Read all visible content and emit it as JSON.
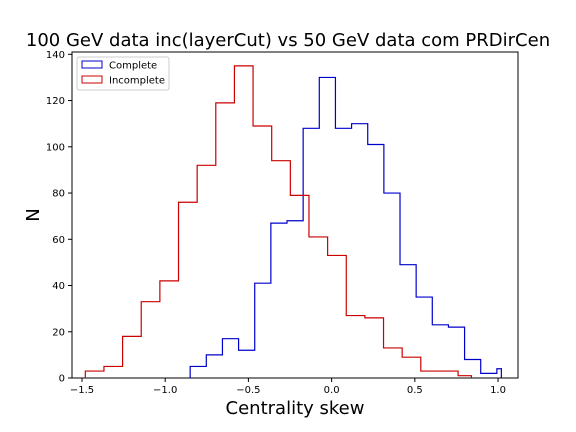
{
  "chart_data": {
    "type": "histogram",
    "title": "100 GeV data inc(layerCut) vs 50 GeV data com PRDirCen",
    "xlabel": "Centrality skew",
    "ylabel": "N",
    "xlim": [
      -1.56,
      1.12
    ],
    "ylim": [
      0,
      141
    ],
    "xticks": [
      -1.5,
      -1.0,
      -0.5,
      0.0,
      0.5,
      1.0
    ],
    "xtick_labels": [
      "−1.5",
      "−1.0",
      "−0.5",
      "0.0",
      "0.5",
      "1.0"
    ],
    "yticks": [
      0,
      20,
      40,
      60,
      80,
      100,
      120,
      140
    ],
    "ytick_labels": [
      "0",
      "20",
      "40",
      "60",
      "80",
      "100",
      "120",
      "140"
    ],
    "grid": false,
    "legend_position": "top-left",
    "series": [
      {
        "name": "Complete",
        "color": "#0000cc",
        "bin_edges": [
          -0.85,
          -0.753,
          -0.656,
          -0.559,
          -0.462,
          -0.365,
          -0.268,
          -0.171,
          -0.074,
          0.023,
          0.12,
          0.217,
          0.314,
          0.411,
          0.508,
          0.605,
          0.702,
          0.799,
          0.896,
          0.993,
          1.02
        ],
        "counts": [
          5,
          10,
          17,
          12,
          41,
          67,
          68,
          108,
          130,
          108,
          110,
          101,
          80,
          49,
          35,
          23,
          22,
          8,
          2,
          4
        ]
      },
      {
        "name": "Incomplete",
        "color": "#cc0000",
        "bin_edges": [
          -1.48,
          -1.368,
          -1.256,
          -1.144,
          -1.032,
          -0.92,
          -0.808,
          -0.696,
          -0.584,
          -0.472,
          -0.36,
          -0.248,
          -0.136,
          -0.024,
          0.088,
          0.2,
          0.312,
          0.424,
          0.536,
          0.648,
          0.76,
          0.84
        ],
        "counts": [
          3,
          5,
          18,
          33,
          42,
          76,
          92,
          119,
          135,
          109,
          94,
          79,
          61,
          53,
          27,
          26,
          13,
          9,
          3,
          3,
          1
        ]
      }
    ]
  }
}
